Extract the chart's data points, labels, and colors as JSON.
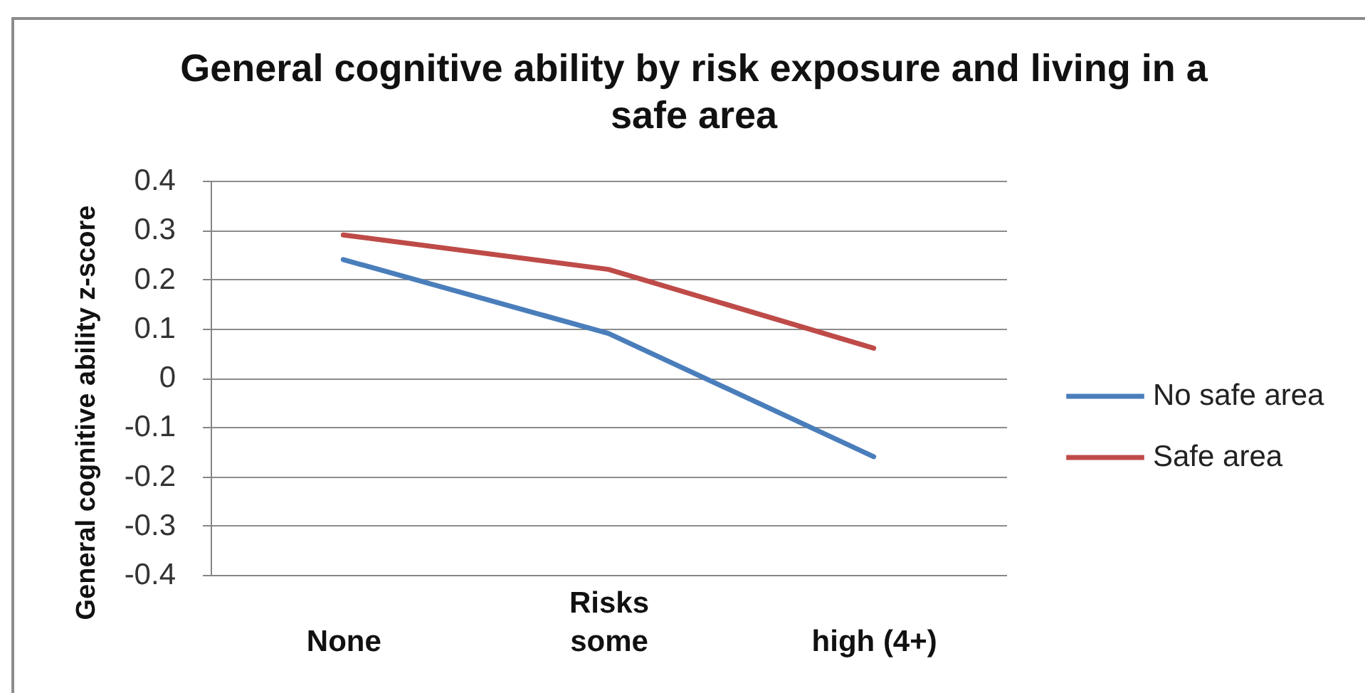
{
  "chart_data": {
    "type": "line",
    "title": "General cognitive ability by risk exposure and living in a safe area",
    "xlabel": "Risks",
    "ylabel": "General cognitive ability z-score",
    "categories": [
      "None",
      "some",
      "high (4+)"
    ],
    "series": [
      {
        "name": "No safe area",
        "color": "#4a7ebb",
        "values": [
          0.24,
          0.09,
          -0.16
        ]
      },
      {
        "name": "Safe area",
        "color": "#be4b48",
        "values": [
          0.29,
          0.22,
          0.06
        ]
      }
    ],
    "ylim": [
      -0.4,
      0.4
    ],
    "yticks": [
      -0.4,
      -0.3,
      -0.2,
      -0.1,
      0,
      0.1,
      0.2,
      0.3,
      0.4
    ],
    "grid": "y",
    "legend": "right",
    "marker": "none",
    "line_style": "solid"
  }
}
